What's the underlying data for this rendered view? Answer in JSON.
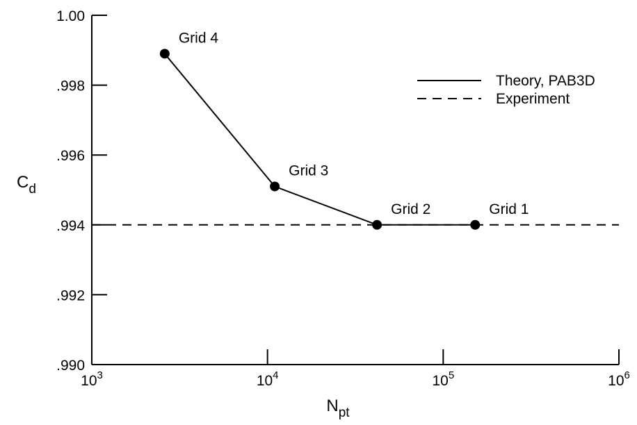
{
  "chart_data": {
    "type": "line",
    "xscale": "log",
    "xlim": [
      1000,
      1000000
    ],
    "ylim": [
      0.99,
      1.0
    ],
    "xlabel": {
      "main": "N",
      "sub": "pt"
    },
    "ylabel": {
      "main": "C",
      "sub": "d"
    },
    "x_ticks": [
      {
        "base": "10",
        "exp": "3",
        "value": 1000
      },
      {
        "base": "10",
        "exp": "4",
        "value": 10000
      },
      {
        "base": "10",
        "exp": "5",
        "value": 100000
      },
      {
        "base": "10",
        "exp": "6",
        "value": 1000000
      }
    ],
    "y_ticks": [
      {
        "label": ".990",
        "value": 0.99
      },
      {
        "label": ".992",
        "value": 0.992
      },
      {
        "label": ".994",
        "value": 0.994
      },
      {
        "label": ".996",
        "value": 0.996
      },
      {
        "label": ".998",
        "value": 0.998
      },
      {
        "label": "1.00",
        "value": 1.0
      }
    ],
    "series": [
      {
        "name": "Theory, PAB3D",
        "style": "solid",
        "points": [
          {
            "x": 2600,
            "y": 0.9989,
            "label": "Grid 4"
          },
          {
            "x": 11000,
            "y": 0.9951,
            "label": "Grid 3"
          },
          {
            "x": 42000,
            "y": 0.994,
            "label": "Grid 2"
          },
          {
            "x": 152000,
            "y": 0.994,
            "label": "Grid 1"
          }
        ]
      },
      {
        "name": "Experiment",
        "style": "dashed",
        "points": [
          {
            "x": 1000,
            "y": 0.994
          },
          {
            "x": 1000000,
            "y": 0.994
          }
        ]
      }
    ],
    "legend_position": "top-right",
    "grid": false
  }
}
